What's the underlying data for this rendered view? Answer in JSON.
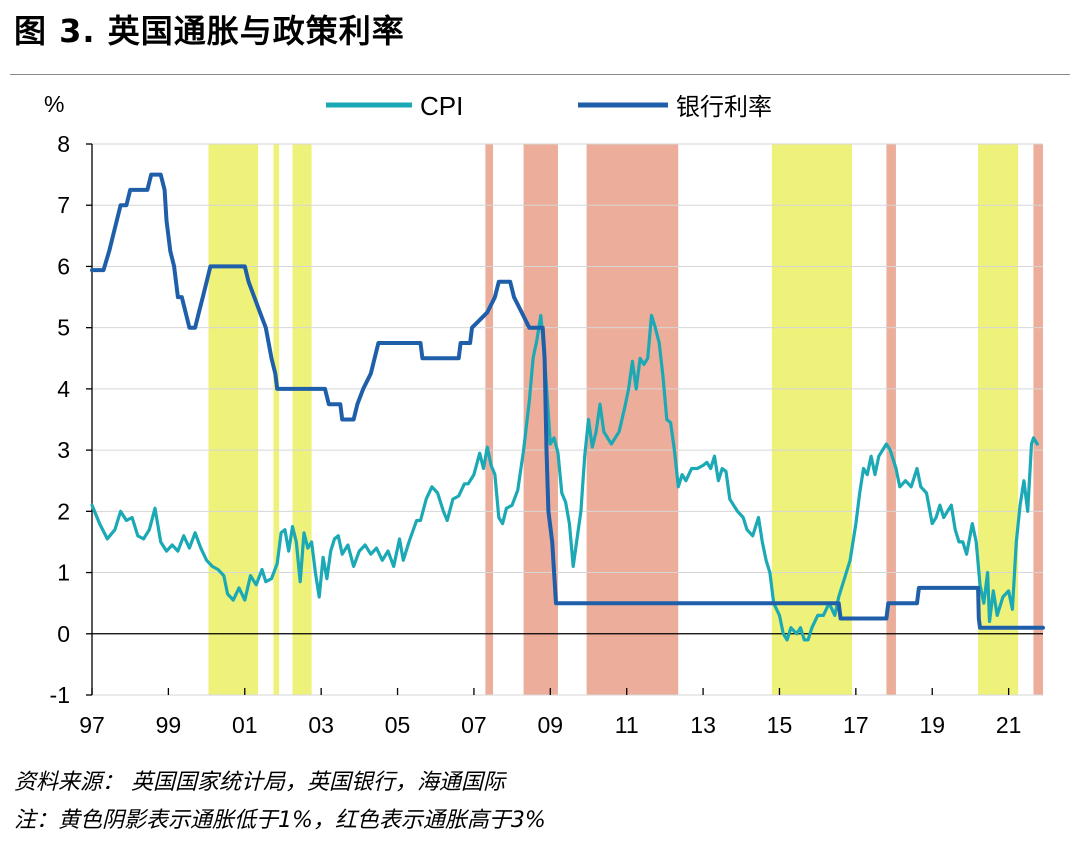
{
  "figure": {
    "title": "图 3. 英国通胀与政策利率",
    "source_note": "资料来源： 英国国家统计局，英国银行，海通国际",
    "shading_note": "注：黄色阴影表示通胀低于1%，红色表示通胀高于3%"
  },
  "chart_data": {
    "type": "line",
    "ylabel": "%",
    "ylim": [
      -1,
      8
    ],
    "yticks": [
      -1,
      0,
      1,
      2,
      3,
      4,
      5,
      6,
      7,
      8
    ],
    "xlim": [
      1997.0,
      2021.9
    ],
    "xticks": [
      {
        "value": 1997,
        "label": "97"
      },
      {
        "value": 1999,
        "label": "99"
      },
      {
        "value": 2001,
        "label": "01"
      },
      {
        "value": 2003,
        "label": "03"
      },
      {
        "value": 2005,
        "label": "05"
      },
      {
        "value": 2007,
        "label": "07"
      },
      {
        "value": 2009,
        "label": "09"
      },
      {
        "value": 2011,
        "label": "11"
      },
      {
        "value": 2013,
        "label": "13"
      },
      {
        "value": 2015,
        "label": "15"
      },
      {
        "value": 2017,
        "label": "17"
      },
      {
        "value": 2019,
        "label": "19"
      },
      {
        "value": 2021,
        "label": "21"
      }
    ],
    "grid": "horizontal",
    "legend_position": "top-center",
    "series": [
      {
        "name": "CPI",
        "color": "#1aa9b5",
        "points": [
          [
            1997.0,
            2.1
          ],
          [
            1997.2,
            1.8
          ],
          [
            1997.4,
            1.55
          ],
          [
            1997.6,
            1.7
          ],
          [
            1997.75,
            2.0
          ],
          [
            1997.9,
            1.85
          ],
          [
            1998.05,
            1.9
          ],
          [
            1998.2,
            1.6
          ],
          [
            1998.35,
            1.55
          ],
          [
            1998.5,
            1.7
          ],
          [
            1998.65,
            2.05
          ],
          [
            1998.8,
            1.5
          ],
          [
            1998.95,
            1.35
          ],
          [
            1999.1,
            1.45
          ],
          [
            1999.25,
            1.35
          ],
          [
            1999.4,
            1.6
          ],
          [
            1999.55,
            1.4
          ],
          [
            1999.7,
            1.65
          ],
          [
            1999.85,
            1.4
          ],
          [
            2000.0,
            1.2
          ],
          [
            2000.15,
            1.1
          ],
          [
            2000.3,
            1.05
          ],
          [
            2000.45,
            0.95
          ],
          [
            2000.55,
            0.65
          ],
          [
            2000.7,
            0.55
          ],
          [
            2000.85,
            0.75
          ],
          [
            2001.0,
            0.55
          ],
          [
            2001.15,
            0.95
          ],
          [
            2001.3,
            0.8
          ],
          [
            2001.45,
            1.05
          ],
          [
            2001.55,
            0.85
          ],
          [
            2001.7,
            0.9
          ],
          [
            2001.85,
            1.15
          ],
          [
            2001.95,
            1.65
          ],
          [
            2002.05,
            1.7
          ],
          [
            2002.15,
            1.35
          ],
          [
            2002.25,
            1.75
          ],
          [
            2002.35,
            1.5
          ],
          [
            2002.45,
            0.85
          ],
          [
            2002.55,
            1.65
          ],
          [
            2002.65,
            1.4
          ],
          [
            2002.75,
            1.5
          ],
          [
            2002.85,
            1.0
          ],
          [
            2002.95,
            0.6
          ],
          [
            2003.05,
            1.25
          ],
          [
            2003.15,
            0.9
          ],
          [
            2003.25,
            1.35
          ],
          [
            2003.35,
            1.55
          ],
          [
            2003.45,
            1.6
          ],
          [
            2003.55,
            1.3
          ],
          [
            2003.7,
            1.45
          ],
          [
            2003.85,
            1.1
          ],
          [
            2004.0,
            1.35
          ],
          [
            2004.15,
            1.45
          ],
          [
            2004.3,
            1.3
          ],
          [
            2004.45,
            1.4
          ],
          [
            2004.6,
            1.2
          ],
          [
            2004.75,
            1.35
          ],
          [
            2004.9,
            1.1
          ],
          [
            2005.05,
            1.55
          ],
          [
            2005.15,
            1.2
          ],
          [
            2005.3,
            1.5
          ],
          [
            2005.5,
            1.85
          ],
          [
            2005.6,
            1.85
          ],
          [
            2005.75,
            2.2
          ],
          [
            2005.9,
            2.4
          ],
          [
            2006.05,
            2.3
          ],
          [
            2006.2,
            2.0
          ],
          [
            2006.3,
            1.85
          ],
          [
            2006.45,
            2.2
          ],
          [
            2006.6,
            2.25
          ],
          [
            2006.75,
            2.45
          ],
          [
            2006.85,
            2.45
          ],
          [
            2007.0,
            2.6
          ],
          [
            2007.15,
            2.95
          ],
          [
            2007.25,
            2.7
          ],
          [
            2007.35,
            3.05
          ],
          [
            2007.45,
            2.75
          ],
          [
            2007.55,
            2.6
          ],
          [
            2007.65,
            1.9
          ],
          [
            2007.75,
            1.8
          ],
          [
            2007.85,
            2.05
          ],
          [
            2008.0,
            2.1
          ],
          [
            2008.15,
            2.35
          ],
          [
            2008.3,
            3.0
          ],
          [
            2008.45,
            3.8
          ],
          [
            2008.55,
            4.5
          ],
          [
            2008.65,
            4.8
          ],
          [
            2008.75,
            5.2
          ],
          [
            2008.85,
            4.5
          ],
          [
            2009.0,
            3.1
          ],
          [
            2009.1,
            3.2
          ],
          [
            2009.2,
            2.95
          ],
          [
            2009.3,
            2.3
          ],
          [
            2009.4,
            2.15
          ],
          [
            2009.5,
            1.8
          ],
          [
            2009.6,
            1.1
          ],
          [
            2009.7,
            1.55
          ],
          [
            2009.8,
            2.0
          ],
          [
            2009.9,
            2.9
          ],
          [
            2010.0,
            3.5
          ],
          [
            2010.1,
            3.05
          ],
          [
            2010.2,
            3.3
          ],
          [
            2010.3,
            3.75
          ],
          [
            2010.4,
            3.3
          ],
          [
            2010.5,
            3.2
          ],
          [
            2010.6,
            3.1
          ],
          [
            2010.7,
            3.2
          ],
          [
            2010.8,
            3.3
          ],
          [
            2010.95,
            3.7
          ],
          [
            2011.05,
            4.0
          ],
          [
            2011.15,
            4.45
          ],
          [
            2011.25,
            4.0
          ],
          [
            2011.35,
            4.5
          ],
          [
            2011.45,
            4.4
          ],
          [
            2011.55,
            4.5
          ],
          [
            2011.65,
            5.2
          ],
          [
            2011.75,
            5.0
          ],
          [
            2011.85,
            4.75
          ],
          [
            2011.95,
            4.2
          ],
          [
            2012.05,
            3.5
          ],
          [
            2012.15,
            3.45
          ],
          [
            2012.25,
            3.0
          ],
          [
            2012.35,
            2.4
          ],
          [
            2012.45,
            2.6
          ],
          [
            2012.55,
            2.5
          ],
          [
            2012.7,
            2.7
          ],
          [
            2012.85,
            2.7
          ],
          [
            2013.0,
            2.75
          ],
          [
            2013.1,
            2.8
          ],
          [
            2013.2,
            2.7
          ],
          [
            2013.3,
            2.9
          ],
          [
            2013.4,
            2.5
          ],
          [
            2013.5,
            2.7
          ],
          [
            2013.6,
            2.65
          ],
          [
            2013.7,
            2.2
          ],
          [
            2013.8,
            2.1
          ],
          [
            2013.9,
            2.0
          ],
          [
            2014.05,
            1.9
          ],
          [
            2014.15,
            1.7
          ],
          [
            2014.3,
            1.6
          ],
          [
            2014.45,
            1.9
          ],
          [
            2014.55,
            1.5
          ],
          [
            2014.65,
            1.2
          ],
          [
            2014.75,
            1.0
          ],
          [
            2014.85,
            0.5
          ],
          [
            2015.0,
            0.3
          ],
          [
            2015.1,
            0.0
          ],
          [
            2015.2,
            -0.1
          ],
          [
            2015.3,
            0.1
          ],
          [
            2015.45,
            0.0
          ],
          [
            2015.55,
            0.1
          ],
          [
            2015.65,
            -0.1
          ],
          [
            2015.75,
            -0.1
          ],
          [
            2015.85,
            0.1
          ],
          [
            2016.0,
            0.3
          ],
          [
            2016.15,
            0.3
          ],
          [
            2016.3,
            0.5
          ],
          [
            2016.45,
            0.3
          ],
          [
            2016.55,
            0.6
          ],
          [
            2016.7,
            0.9
          ],
          [
            2016.85,
            1.2
          ],
          [
            2017.0,
            1.8
          ],
          [
            2017.1,
            2.3
          ],
          [
            2017.2,
            2.7
          ],
          [
            2017.3,
            2.6
          ],
          [
            2017.4,
            2.9
          ],
          [
            2017.5,
            2.6
          ],
          [
            2017.6,
            2.9
          ],
          [
            2017.7,
            3.0
          ],
          [
            2017.8,
            3.1
          ],
          [
            2017.9,
            3.0
          ],
          [
            2018.05,
            2.7
          ],
          [
            2018.15,
            2.4
          ],
          [
            2018.3,
            2.5
          ],
          [
            2018.45,
            2.4
          ],
          [
            2018.6,
            2.7
          ],
          [
            2018.7,
            2.4
          ],
          [
            2018.85,
            2.3
          ],
          [
            2019.0,
            1.8
          ],
          [
            2019.1,
            1.9
          ],
          [
            2019.2,
            2.1
          ],
          [
            2019.3,
            1.9
          ],
          [
            2019.4,
            2.0
          ],
          [
            2019.5,
            2.1
          ],
          [
            2019.6,
            1.7
          ],
          [
            2019.7,
            1.5
          ],
          [
            2019.8,
            1.5
          ],
          [
            2019.9,
            1.3
          ],
          [
            2020.05,
            1.8
          ],
          [
            2020.15,
            1.5
          ],
          [
            2020.25,
            0.8
          ],
          [
            2020.35,
            0.5
          ],
          [
            2020.45,
            1.0
          ],
          [
            2020.5,
            0.2
          ],
          [
            2020.6,
            0.7
          ],
          [
            2020.7,
            0.3
          ],
          [
            2020.85,
            0.6
          ],
          [
            2021.0,
            0.7
          ],
          [
            2021.1,
            0.4
          ],
          [
            2021.2,
            1.5
          ],
          [
            2021.3,
            2.1
          ],
          [
            2021.4,
            2.5
          ],
          [
            2021.5,
            2.0
          ],
          [
            2021.6,
            3.1
          ],
          [
            2021.65,
            3.2
          ],
          [
            2021.75,
            3.1
          ]
        ]
      },
      {
        "name": "银行利率",
        "color": "#1f5faa",
        "points": [
          [
            1997.0,
            5.94
          ],
          [
            1997.3,
            5.94
          ],
          [
            1997.45,
            6.25
          ],
          [
            1997.55,
            6.5
          ],
          [
            1997.65,
            6.75
          ],
          [
            1997.75,
            7.0
          ],
          [
            1997.9,
            7.0
          ],
          [
            1998.0,
            7.25
          ],
          [
            1998.45,
            7.25
          ],
          [
            1998.55,
            7.5
          ],
          [
            1998.8,
            7.5
          ],
          [
            1998.9,
            7.25
          ],
          [
            1998.95,
            6.75
          ],
          [
            1999.05,
            6.25
          ],
          [
            1999.15,
            6.0
          ],
          [
            1999.25,
            5.5
          ],
          [
            1999.35,
            5.5
          ],
          [
            1999.45,
            5.25
          ],
          [
            1999.55,
            5.0
          ],
          [
            1999.7,
            5.0
          ],
          [
            1999.8,
            5.25
          ],
          [
            1999.9,
            5.5
          ],
          [
            2000.0,
            5.75
          ],
          [
            2000.1,
            6.0
          ],
          [
            2001.0,
            6.0
          ],
          [
            2001.1,
            5.75
          ],
          [
            2001.25,
            5.5
          ],
          [
            2001.4,
            5.25
          ],
          [
            2001.55,
            5.0
          ],
          [
            2001.7,
            4.5
          ],
          [
            2001.8,
            4.25
          ],
          [
            2001.85,
            4.0
          ],
          [
            2003.1,
            4.0
          ],
          [
            2003.2,
            3.75
          ],
          [
            2003.5,
            3.75
          ],
          [
            2003.55,
            3.5
          ],
          [
            2003.85,
            3.5
          ],
          [
            2003.95,
            3.75
          ],
          [
            2004.1,
            4.0
          ],
          [
            2004.3,
            4.25
          ],
          [
            2004.4,
            4.5
          ],
          [
            2004.5,
            4.75
          ],
          [
            2005.6,
            4.75
          ],
          [
            2005.65,
            4.5
          ],
          [
            2006.6,
            4.5
          ],
          [
            2006.65,
            4.75
          ],
          [
            2006.9,
            4.75
          ],
          [
            2006.95,
            5.0
          ],
          [
            2007.35,
            5.25
          ],
          [
            2007.55,
            5.5
          ],
          [
            2007.65,
            5.75
          ],
          [
            2007.95,
            5.75
          ],
          [
            2008.05,
            5.5
          ],
          [
            2008.25,
            5.25
          ],
          [
            2008.45,
            5.0
          ],
          [
            2008.8,
            5.0
          ],
          [
            2008.85,
            4.5
          ],
          [
            2008.9,
            3.0
          ],
          [
            2008.95,
            2.0
          ],
          [
            2009.05,
            1.5
          ],
          [
            2009.1,
            1.0
          ],
          [
            2009.15,
            0.5
          ],
          [
            2016.55,
            0.5
          ],
          [
            2016.6,
            0.25
          ],
          [
            2017.8,
            0.25
          ],
          [
            2017.85,
            0.5
          ],
          [
            2018.6,
            0.5
          ],
          [
            2018.65,
            0.75
          ],
          [
            2020.2,
            0.75
          ],
          [
            2020.22,
            0.25
          ],
          [
            2020.25,
            0.1
          ],
          [
            2021.9,
            0.1
          ]
        ]
      }
    ],
    "shading": [
      {
        "type": "low",
        "from": 2000.05,
        "to": 2001.35
      },
      {
        "type": "low",
        "from": 2001.75,
        "to": 2001.9
      },
      {
        "type": "low",
        "from": 2002.25,
        "to": 2002.75
      },
      {
        "type": "high",
        "from": 2007.3,
        "to": 2007.5
      },
      {
        "type": "high",
        "from": 2008.3,
        "to": 2009.2
      },
      {
        "type": "high",
        "from": 2009.95,
        "to": 2012.35
      },
      {
        "type": "low",
        "from": 2014.8,
        "to": 2016.9
      },
      {
        "type": "high",
        "from": 2017.8,
        "to": 2018.05
      },
      {
        "type": "low",
        "from": 2020.2,
        "to": 2021.25
      },
      {
        "type": "high",
        "from": 2021.65,
        "to": 2021.9
      }
    ],
    "shading_colors": {
      "low": "#eef27a",
      "high": "#ecae9b"
    }
  }
}
